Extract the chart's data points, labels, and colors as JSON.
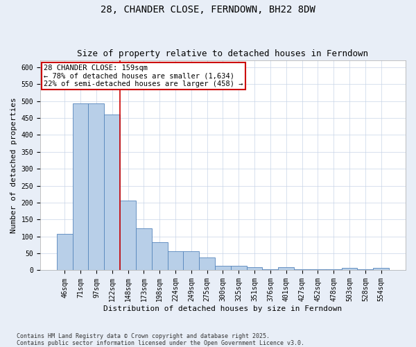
{
  "title": "28, CHANDER CLOSE, FERNDOWN, BH22 8DW",
  "subtitle": "Size of property relative to detached houses in Ferndown",
  "xlabel": "Distribution of detached houses by size in Ferndown",
  "ylabel": "Number of detached properties",
  "categories": [
    "46sqm",
    "71sqm",
    "97sqm",
    "122sqm",
    "148sqm",
    "173sqm",
    "198sqm",
    "224sqm",
    "249sqm",
    "275sqm",
    "300sqm",
    "325sqm",
    "351sqm",
    "376sqm",
    "401sqm",
    "427sqm",
    "452sqm",
    "478sqm",
    "503sqm",
    "528sqm",
    "554sqm"
  ],
  "values": [
    107,
    493,
    493,
    460,
    207,
    124,
    82,
    57,
    57,
    38,
    14,
    14,
    10,
    3,
    10,
    3,
    3,
    3,
    7,
    3,
    7
  ],
  "bar_color": "#b8cfe8",
  "bar_edge_color": "#5585bb",
  "vline_x": 3.5,
  "vline_color": "#cc0000",
  "annotation_line1": "28 CHANDER CLOSE: 159sqm",
  "annotation_line2": "← 78% of detached houses are smaller (1,634)",
  "annotation_line3": "22% of semi-detached houses are larger (458) →",
  "annotation_box_color": "#cc0000",
  "ylim": [
    0,
    620
  ],
  "yticks": [
    0,
    50,
    100,
    150,
    200,
    250,
    300,
    350,
    400,
    450,
    500,
    550,
    600
  ],
  "footnote1": "Contains HM Land Registry data © Crown copyright and database right 2025.",
  "footnote2": "Contains public sector information licensed under the Open Government Licence v3.0.",
  "bg_color": "#e8eef7",
  "plot_bg_color": "#ffffff",
  "grid_color": "#c8d4e8",
  "title_fontsize": 10,
  "subtitle_fontsize": 9,
  "axis_label_fontsize": 8,
  "tick_fontsize": 7,
  "annotation_fontsize": 7.5,
  "footnote_fontsize": 6
}
